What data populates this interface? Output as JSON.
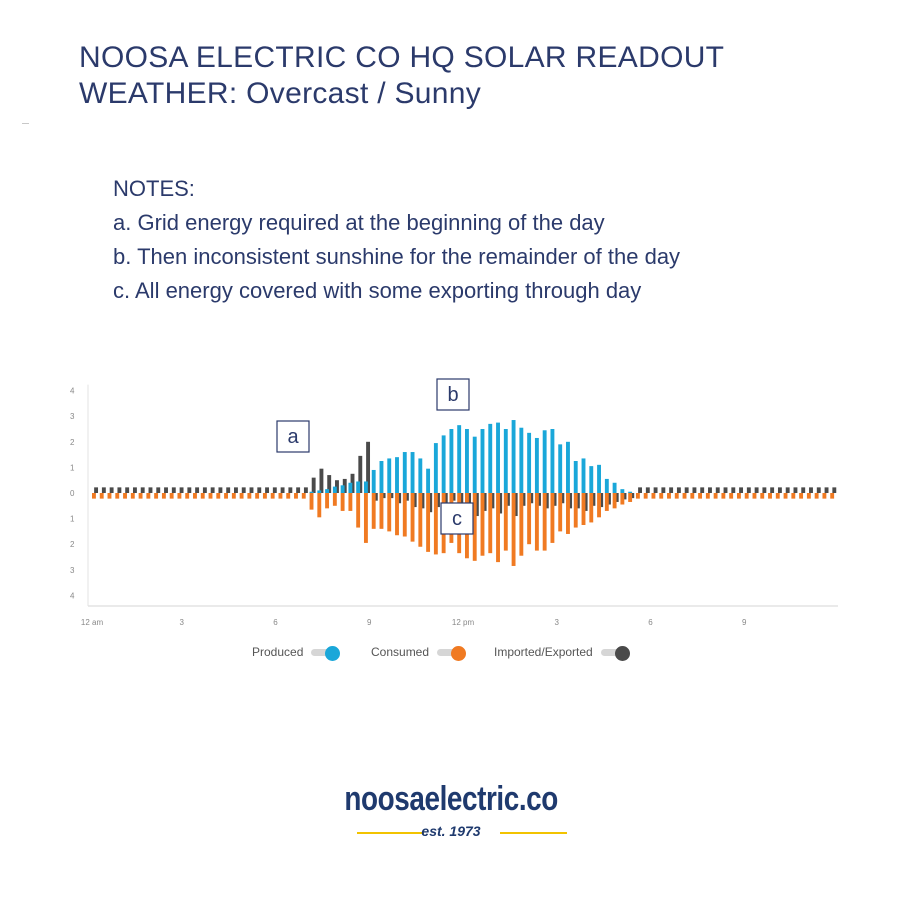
{
  "title_line1": "NOOSA ELECTRIC CO HQ SOLAR READOUT",
  "title_line2": "WEATHER: Overcast / Sunny",
  "notes": [
    "NOTES:",
    "a. Grid energy required at the beginning of the day",
    "b. Then inconsistent sunshine for the remainder of the day",
    "c. All energy covered with some exporting through day"
  ],
  "chart_data": {
    "type": "bar",
    "y_tick_labels": [
      "4",
      "3",
      "2",
      "1",
      "0",
      "1",
      "2",
      "3",
      "4"
    ],
    "ylim": [
      -4,
      4
    ],
    "x_tick_labels": [
      "12 am",
      "3",
      "6",
      "9",
      "12 pm",
      "3",
      "6",
      "9"
    ],
    "x_tick_hours": [
      0,
      3,
      6,
      9,
      12,
      15,
      18,
      21
    ],
    "bar_interval_hours": 0.25,
    "annotations": [
      {
        "label": "a",
        "hour": 6.7,
        "y": 2.2
      },
      {
        "label": "b",
        "hour": 12.0,
        "y": 3.8
      },
      {
        "label": "c",
        "hour": 12.0,
        "y": -1.0
      }
    ],
    "series": [
      {
        "name": "Produced",
        "color": "#1aa7d9",
        "values": [
          0,
          0,
          0,
          0,
          0,
          0,
          0,
          0,
          0,
          0,
          0,
          0,
          0,
          0,
          0,
          0,
          0,
          0,
          0,
          0,
          0,
          0,
          0,
          0,
          0,
          0,
          0,
          0,
          0.05,
          0.1,
          0.15,
          0.25,
          0.3,
          0.4,
          0.45,
          0.45,
          0.9,
          1.25,
          1.35,
          1.4,
          1.6,
          1.6,
          1.35,
          0.95,
          1.95,
          2.25,
          2.5,
          2.65,
          2.5,
          2.2,
          2.5,
          2.7,
          2.75,
          2.5,
          2.85,
          2.55,
          2.35,
          2.15,
          2.45,
          2.5,
          1.9,
          2.0,
          1.25,
          1.35,
          1.05,
          1.1,
          0.55,
          0.4,
          0.15,
          0.05,
          0,
          0,
          0,
          0,
          0,
          0,
          0,
          0,
          0,
          0,
          0,
          0,
          0,
          0,
          0,
          0,
          0,
          0,
          0,
          0,
          0,
          0,
          0,
          0,
          0,
          0
        ]
      },
      {
        "name": "Consumed",
        "color": "#f07a22",
        "values": [
          -0.22,
          -0.22,
          -0.22,
          -0.22,
          -0.22,
          -0.22,
          -0.22,
          -0.22,
          -0.22,
          -0.22,
          -0.22,
          -0.22,
          -0.22,
          -0.22,
          -0.22,
          -0.22,
          -0.22,
          -0.22,
          -0.22,
          -0.22,
          -0.22,
          -0.22,
          -0.22,
          -0.22,
          -0.22,
          -0.22,
          -0.22,
          -0.22,
          -0.65,
          -0.95,
          -0.6,
          -0.5,
          -0.7,
          -0.7,
          -1.35,
          -1.95,
          -1.4,
          -1.4,
          -1.5,
          -1.65,
          -1.7,
          -1.9,
          -2.1,
          -2.3,
          -2.4,
          -2.35,
          -1.95,
          -2.35,
          -2.55,
          -2.65,
          -2.45,
          -2.35,
          -2.7,
          -2.25,
          -2.85,
          -2.45,
          -2.0,
          -2.25,
          -2.25,
          -1.95,
          -1.5,
          -1.6,
          -1.35,
          -1.25,
          -1.15,
          -0.95,
          -0.7,
          -0.6,
          -0.45,
          -0.35,
          -0.22,
          -0.22,
          -0.22,
          -0.22,
          -0.22,
          -0.22,
          -0.22,
          -0.22,
          -0.22,
          -0.22,
          -0.22,
          -0.22,
          -0.22,
          -0.22,
          -0.22,
          -0.22,
          -0.22,
          -0.22,
          -0.22,
          -0.22,
          -0.22,
          -0.22,
          -0.22,
          -0.22,
          -0.22,
          -0.22
        ]
      },
      {
        "name": "Imported/Exported",
        "color": "#4a4a4a",
        "values": [
          0.22,
          0.22,
          0.22,
          0.22,
          0.22,
          0.22,
          0.22,
          0.22,
          0.22,
          0.22,
          0.22,
          0.22,
          0.22,
          0.22,
          0.22,
          0.22,
          0.22,
          0.22,
          0.22,
          0.22,
          0.22,
          0.22,
          0.22,
          0.22,
          0.22,
          0.22,
          0.22,
          0.22,
          0.6,
          0.95,
          0.7,
          0.5,
          0.55,
          0.75,
          1.45,
          2.0,
          -0.3,
          -0.2,
          -0.2,
          -0.4,
          -0.3,
          -0.55,
          -0.6,
          -0.75,
          -0.55,
          -0.5,
          -0.3,
          -0.7,
          -0.8,
          -0.9,
          -0.7,
          -0.6,
          -0.8,
          -0.5,
          -0.9,
          -0.5,
          -0.4,
          -0.5,
          -0.6,
          -0.5,
          -0.4,
          -0.6,
          -0.6,
          -0.7,
          -0.5,
          -0.55,
          -0.45,
          -0.35,
          -0.25,
          -0.2,
          0.22,
          0.22,
          0.22,
          0.22,
          0.22,
          0.22,
          0.22,
          0.22,
          0.22,
          0.22,
          0.22,
          0.22,
          0.22,
          0.22,
          0.22,
          0.22,
          0.22,
          0.22,
          0.22,
          0.22,
          0.22,
          0.22,
          0.22,
          0.22,
          0.22,
          0.22
        ]
      }
    ],
    "legend": {
      "placement": "bottom-center"
    },
    "grid": false
  },
  "legend_items": [
    {
      "label": "Produced",
      "color": "#1aa7d9"
    },
    {
      "label": "Consumed",
      "color": "#f07a22"
    },
    {
      "label": "Imported/Exported",
      "color": "#4a4a4a"
    }
  ],
  "brand": {
    "name": "noosaelectric.co",
    "tagline": "est. 1973",
    "line_color": "#f2c300"
  }
}
